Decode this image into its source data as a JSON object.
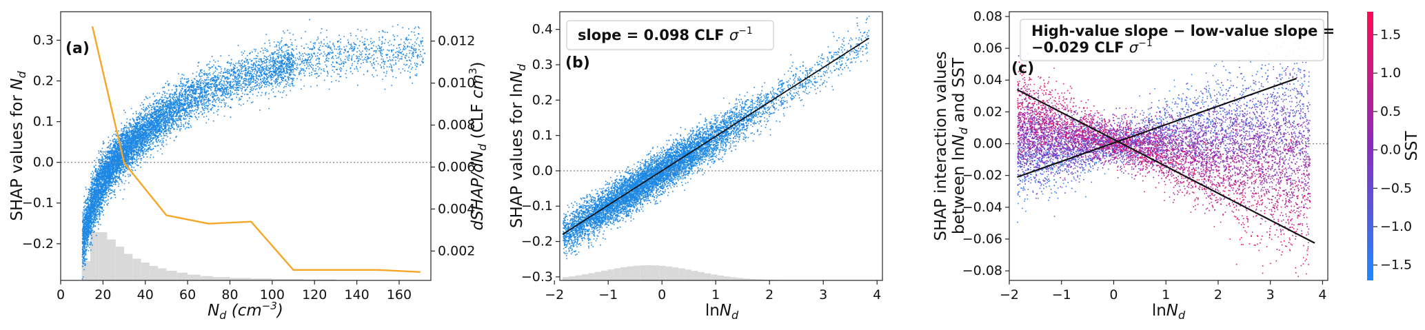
{
  "chart_data": [
    {
      "panel": "(a)",
      "type": "scatter",
      "ylabel": "SHAP values for N_d",
      "xlabel": "N_d (cm^-3)",
      "y2label": "dSHAP/dN_d (CLF cm^3)",
      "xlim": [
        0,
        175
      ],
      "ylim": [
        -0.29,
        0.37
      ],
      "y2lim": [
        0.0006,
        0.0134
      ],
      "xticks": [
        0,
        20,
        40,
        60,
        80,
        100,
        120,
        140,
        160
      ],
      "yticks": [
        -0.2,
        -0.1,
        0.0,
        0.1,
        0.2,
        0.3
      ],
      "y2ticks": [
        0.002,
        0.004,
        0.006,
        0.008,
        0.01,
        0.012
      ],
      "xtick_labels": [
        "0",
        "20",
        "40",
        "60",
        "80",
        "100",
        "120",
        "140",
        "160"
      ],
      "ytick_labels": [
        "−0.2",
        "−0.1",
        "0.0",
        "0.1",
        "0.2",
        "0.3"
      ],
      "y2tick_labels": [
        "0.002",
        "0.004",
        "0.006",
        "0.008",
        "0.010",
        "0.012"
      ],
      "scatter_trend": {
        "x": [
          10,
          12,
          15,
          20,
          25,
          30,
          40,
          50,
          60,
          70,
          80,
          90,
          100,
          110,
          120,
          140,
          170
        ],
        "y": [
          -0.2,
          -0.15,
          -0.1,
          -0.04,
          0.0,
          0.03,
          0.08,
          0.12,
          0.155,
          0.18,
          0.2,
          0.215,
          0.23,
          0.245,
          0.255,
          0.265,
          0.27
        ]
      },
      "scatter_color": "#1e88e5",
      "derivative_line": {
        "x": [
          15,
          30,
          50,
          70,
          90,
          110,
          150,
          170
        ],
        "y": [
          0.0127,
          0.0062,
          0.0037,
          0.0033,
          0.0034,
          0.0011,
          0.0011,
          0.001
        ],
        "color": "#f5a623"
      },
      "histogram_color": "#d9d9d9"
    },
    {
      "panel": "(b)",
      "type": "scatter",
      "ylabel": "SHAP values for lnN_d",
      "xlabel": "lnN_d",
      "annotation": "slope = 0.098 CLF σ^-1",
      "xlim": [
        -1.9,
        4.1
      ],
      "ylim": [
        -0.31,
        0.45
      ],
      "xticks": [
        -2,
        -1,
        0,
        1,
        2,
        3,
        4
      ],
      "yticks": [
        -0.3,
        -0.2,
        -0.1,
        0.0,
        0.1,
        0.2,
        0.3,
        0.4
      ],
      "xtick_labels": [
        "−2",
        "−1",
        "0",
        "1",
        "2",
        "3",
        "4"
      ],
      "ytick_labels": [
        "−0.3",
        "−0.2",
        "−0.1",
        "0.0",
        "0.1",
        "0.2",
        "0.3",
        "0.4"
      ],
      "fit_line": {
        "x": [
          -1.85,
          3.85
        ],
        "y": [
          -0.18,
          0.375
        ]
      },
      "scatter_color": "#1e88e5",
      "histogram_color": "#d9d9d9"
    },
    {
      "panel": "(c)",
      "type": "scatter",
      "ylabel": "SHAP interaction values between lnN_d and SST",
      "xlabel": "lnN_d",
      "annotation_line1": "High-value slope − low-value slope =",
      "annotation_line2": "−0.029 CLF σ^-1",
      "xlim": [
        -2.0,
        4.1
      ],
      "ylim": [
        -0.086,
        0.083
      ],
      "xticks": [
        -2,
        -1,
        0,
        1,
        2,
        3,
        4
      ],
      "yticks": [
        -0.08,
        -0.06,
        -0.04,
        -0.02,
        0.0,
        0.02,
        0.04,
        0.06,
        0.08
      ],
      "xtick_labels": [
        "−2",
        "−1",
        "0",
        "1",
        "2",
        "3",
        "4"
      ],
      "ytick_labels": [
        "−0.08",
        "−0.06",
        "−0.04",
        "−0.02",
        "0.00",
        "0.02",
        "0.04",
        "0.06",
        "0.08"
      ],
      "high_sst_line": {
        "x": [
          -1.85,
          3.85
        ],
        "y": [
          0.034,
          -0.0625
        ]
      },
      "low_sst_line": {
        "x": [
          -1.85,
          3.5
        ],
        "y": [
          -0.021,
          0.041
        ]
      },
      "colorbar": {
        "label": "SST",
        "range": [
          -1.7,
          1.8
        ],
        "ticks": [
          -1.5,
          -1.0,
          -0.5,
          0.0,
          0.5,
          1.0,
          1.5
        ],
        "tick_labels": [
          "−1.5",
          "−1.0",
          "−0.5",
          "0.0",
          "0.5",
          "1.0",
          "1.5"
        ],
        "low_color": "#1e88ff",
        "mid_color": "#8a2bbd",
        "high_color": "#ff0a52"
      }
    }
  ]
}
